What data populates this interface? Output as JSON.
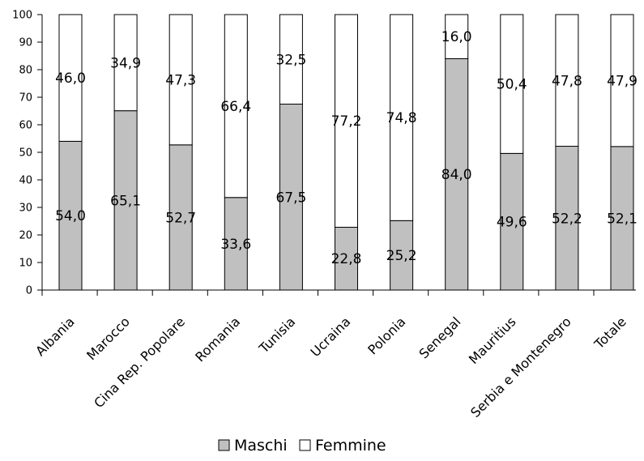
{
  "chart_data": {
    "type": "bar",
    "stacked": true,
    "categories": [
      "Albania",
      "Marocco",
      "Cina Rep. Popolare",
      "Romania",
      "Tunisia",
      "Ucraina",
      "Polonia",
      "Senegal",
      "Mauritius",
      "Serbia e Montenegro",
      "Totale"
    ],
    "series": [
      {
        "name": "Maschi",
        "color": "#c0c0c0",
        "values": [
          54.0,
          65.1,
          52.7,
          33.6,
          67.5,
          22.8,
          25.2,
          84.0,
          49.6,
          52.2,
          52.1
        ],
        "labels": [
          "54,0",
          "65,1",
          "52,7",
          "33,6",
          "67,5",
          "22,8",
          "25,2",
          "84,0",
          "49,6",
          "52,2",
          "52,1"
        ]
      },
      {
        "name": "Femmine",
        "color": "#ffffff",
        "values": [
          46.0,
          34.9,
          47.3,
          66.4,
          32.5,
          77.2,
          74.8,
          16.0,
          50.4,
          47.8,
          47.9
        ],
        "labels": [
          "46,0",
          "34,9",
          "47,3",
          "66,4",
          "32,5",
          "77,2",
          "74,8",
          "16,0",
          "50,4",
          "47,8",
          "47,9"
        ]
      }
    ],
    "ylim": [
      0,
      100
    ],
    "yticks": [
      "0",
      "10",
      "20",
      "30",
      "40",
      "50",
      "60",
      "70",
      "80",
      "90",
      "100"
    ],
    "grid": false,
    "legend_position": "bottom"
  }
}
